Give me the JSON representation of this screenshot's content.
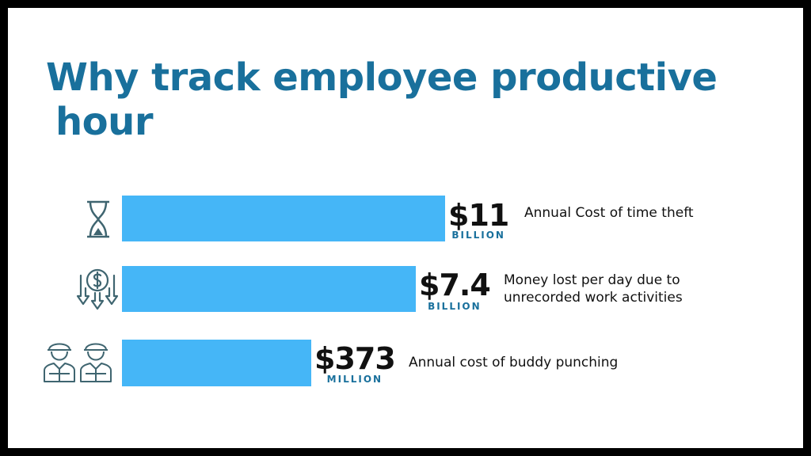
{
  "title": {
    "line1": "Why track employee productive",
    "line2": "hour"
  },
  "colors": {
    "title": "#19709c",
    "bar": "#45b6f7",
    "frame": "#000000",
    "icon": "#3f6570"
  },
  "chart_data": {
    "type": "bar",
    "orientation": "horizontal",
    "categories": [
      "Annual Cost of time theft",
      "Money lost per day due to unrecorded work activities",
      "Annual cost of buddy punching"
    ],
    "items": [
      {
        "value_label": "$11",
        "unit": "BILLION",
        "desc_lines": [
          "Annual Cost of time theft"
        ],
        "icon": "hourglass-icon",
        "relative_length": 1.0
      },
      {
        "value_label": "$7.4",
        "unit": "BILLION",
        "desc_lines": [
          "Money lost per day due to",
          "unrecorded work activities"
        ],
        "icon": "money-loss-icon",
        "relative_length": 0.91
      },
      {
        "value_label": "$373",
        "unit": "MILLION",
        "desc_lines": [
          "Annual cost of buddy punching"
        ],
        "icon": "workers-icon",
        "relative_length": 0.585
      }
    ],
    "grid": false,
    "legend": "none"
  }
}
